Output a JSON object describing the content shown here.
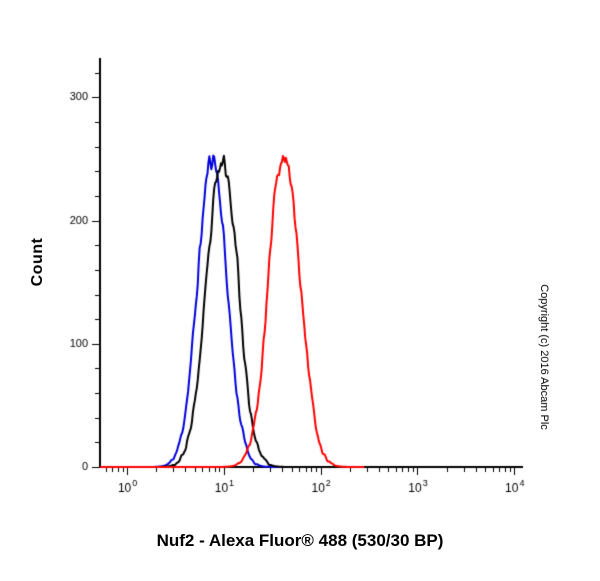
{
  "chart_data": {
    "type": "line",
    "chart_kind": "flow-cytometry-histogram",
    "title": "Nuf2 - Alexa Fluor® 488 (530/30 BP)",
    "xlabel": "",
    "ylabel": "Count",
    "copyright": "Copyright (c) 2016 Abcam Plc",
    "x_scale": "log10",
    "x_range": [
      1,
      10000
    ],
    "xlim_log": [
      -0.28,
      4.09
    ],
    "ylim": [
      0,
      332
    ],
    "y_ticks": [
      0,
      100,
      200,
      300
    ],
    "y_minor_step": 20,
    "x_ticks": [
      {
        "log": 0,
        "base": "10",
        "exp": "0"
      },
      {
        "log": 1,
        "base": "10",
        "exp": "1"
      },
      {
        "log": 2,
        "base": "10",
        "exp": "2"
      },
      {
        "log": 3,
        "base": "10",
        "exp": "3"
      },
      {
        "log": 4,
        "base": "10",
        "exp": "4"
      }
    ],
    "grid": false,
    "legend": "none",
    "axis_color": "#000000",
    "series": [
      {
        "name": "negative-control-blue",
        "color": "#0000dd",
        "peak_x": 7.6,
        "peak_count": 252,
        "center_log": 0.88,
        "sigma_log": 0.15,
        "peak": 252,
        "baseline_end_log": 2.05,
        "seed": 11,
        "bumps": []
      },
      {
        "name": "isotype-control-black",
        "color": "#000000",
        "peak_x": 9.5,
        "peak_count": 248,
        "center_log": 0.98,
        "sigma_log": 0.16,
        "peak": 246,
        "baseline_end_log": 2.3,
        "seed": 23,
        "bumps": [
          {
            "center_log": 1.12,
            "sigma_log": 0.05,
            "peak": 16
          }
        ]
      },
      {
        "name": "nuf2-stained-red",
        "color": "#ff0000",
        "peak_x": 42.7,
        "peak_count": 253,
        "center_log": 1.63,
        "sigma_log": 0.16,
        "peak": 250,
        "baseline_end_log": 2.45,
        "seed": 5,
        "bumps": [
          {
            "center_log": 1.5,
            "sigma_log": 0.05,
            "peak": 18
          }
        ]
      }
    ]
  }
}
